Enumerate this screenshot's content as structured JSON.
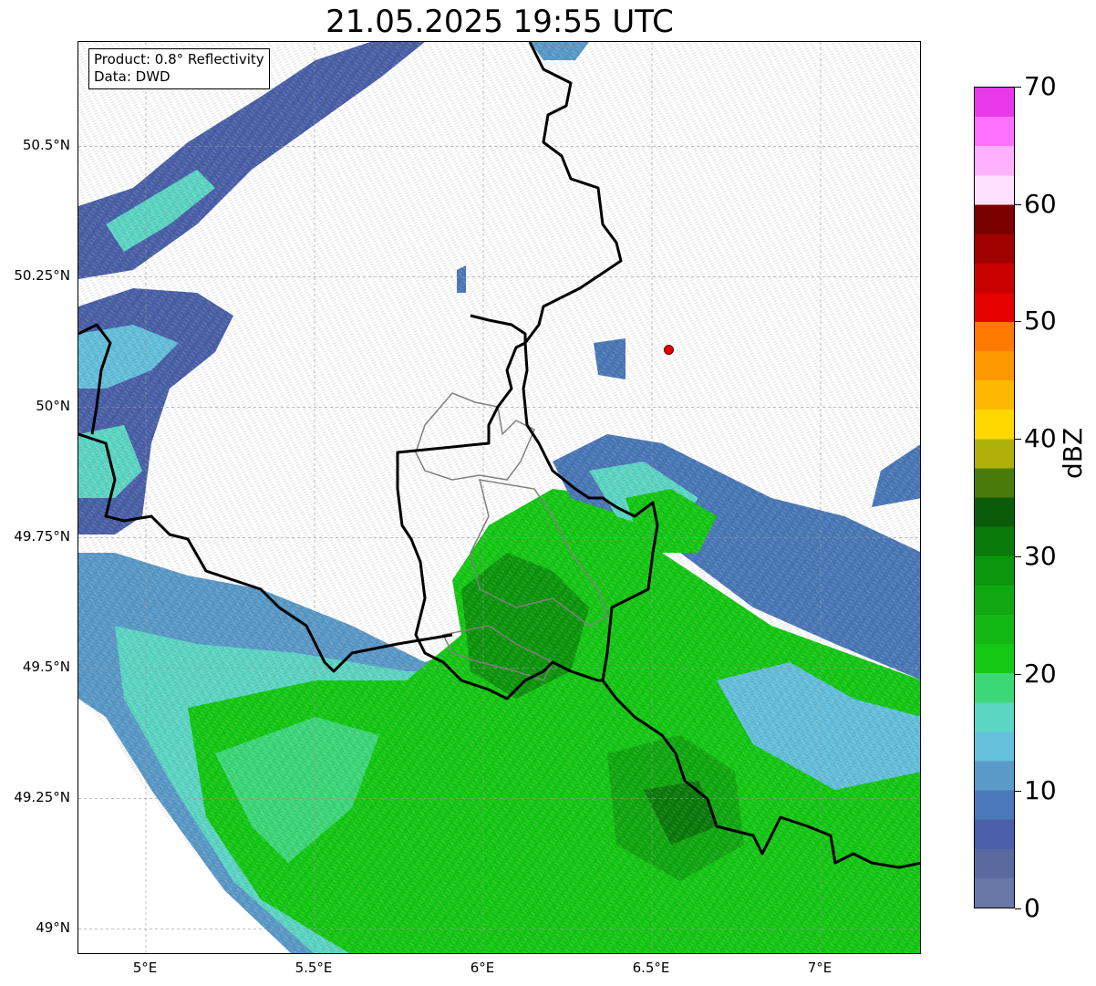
{
  "title": "21.05.2025 19:55 UTC",
  "info": {
    "product": "Product: 0.8° Reflectivity",
    "data": "Data: DWD"
  },
  "map": {
    "lon_range": [
      4.8,
      7.3
    ],
    "lat_range": [
      48.95,
      50.7
    ],
    "lon_ticks": [
      {
        "value": 5.0,
        "label": "5°E"
      },
      {
        "value": 5.5,
        "label": "5.5°E"
      },
      {
        "value": 6.0,
        "label": "6°E"
      },
      {
        "value": 6.5,
        "label": "6.5°E"
      },
      {
        "value": 7.0,
        "label": "7°E"
      }
    ],
    "lat_ticks": [
      {
        "value": 50.5,
        "label": "50.5°N"
      },
      {
        "value": 50.25,
        "label": "50.25°N"
      },
      {
        "value": 50.0,
        "label": "50°N"
      },
      {
        "value": 49.75,
        "label": "49.75°N"
      },
      {
        "value": 49.5,
        "label": "49.5°N"
      },
      {
        "value": 49.25,
        "label": "49.25°N"
      },
      {
        "value": 49.0,
        "label": "49°N"
      }
    ],
    "marker": {
      "lon": 6.55,
      "lat": 50.11,
      "color": "#e00000"
    },
    "grid": true
  },
  "colorbar": {
    "label": "dBZ",
    "min": 0,
    "max": 70,
    "ticks": [
      {
        "value": 0,
        "label": "0"
      },
      {
        "value": 10,
        "label": "10"
      },
      {
        "value": 20,
        "label": "20"
      },
      {
        "value": 30,
        "label": "30"
      },
      {
        "value": 40,
        "label": "40"
      },
      {
        "value": 50,
        "label": "50"
      },
      {
        "value": 60,
        "label": "60"
      },
      {
        "value": 70,
        "label": "70"
      }
    ],
    "colors": [
      "#6a78a8",
      "#5a6aa0",
      "#4a60a8",
      "#4a78b8",
      "#5a9ac8",
      "#64c0dc",
      "#5cd6c4",
      "#3cd878",
      "#14c814",
      "#14b814",
      "#10a810",
      "#0c960c",
      "#0a7a0a",
      "#0a5c0a",
      "#4a7a0a",
      "#b0b00a",
      "#ffd800",
      "#ffb800",
      "#ff9800",
      "#ff7a00",
      "#e60000",
      "#c80000",
      "#a00000",
      "#7a0000",
      "#ffe0ff",
      "#ffb0ff",
      "#ff70ff",
      "#e838e8"
    ]
  }
}
